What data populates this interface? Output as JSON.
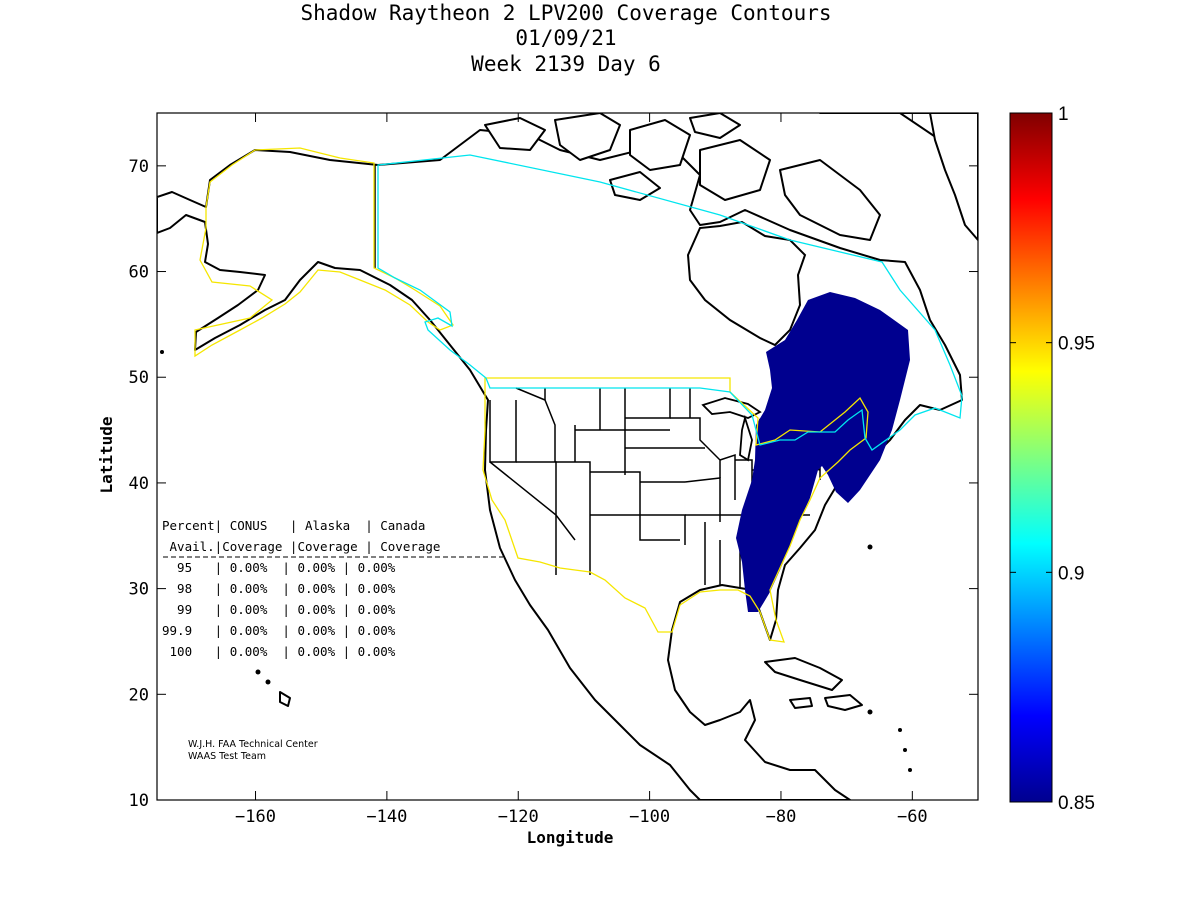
{
  "title": {
    "line1": "Shadow Raytheon 2 LPV200 Coverage Contours",
    "line2": "01/09/21",
    "line3": "Week 2139 Day 6"
  },
  "axes": {
    "xlabel": "Longitude",
    "ylabel": "Latitude",
    "xlim": [
      -175,
      -50
    ],
    "ylim": [
      10,
      75
    ],
    "xticks": [
      -160,
      -140,
      -120,
      -100,
      -80,
      -60
    ],
    "yticks": [
      10,
      20,
      30,
      40,
      50,
      60,
      70
    ]
  },
  "colorbar": {
    "min": 0.85,
    "max": 1,
    "ticks": [
      "1",
      "0.95",
      "0.9",
      "0.85"
    ],
    "colormap": "jet"
  },
  "colors": {
    "coverage": "#00008f",
    "conus_boundary": "#f5e600",
    "canada_boundary": "#00e5ee"
  },
  "table": {
    "header1": "Percent| CONUS   | Alaska  | Canada",
    "header2": " Avail.|Coverage |Coverage | Coverage",
    "rows": [
      "  95   | 0.00%  | 0.00% | 0.00%",
      "  98   | 0.00%  | 0.00% | 0.00%",
      "  99   | 0.00%  | 0.00% | 0.00%",
      "99.9   | 0.00%  | 0.00% | 0.00%",
      " 100   | 0.00%  | 0.00% | 0.00%"
    ]
  },
  "credit": {
    "line1": "W.J.H. FAA Technical Center",
    "line2": "WAAS Test Team"
  }
}
